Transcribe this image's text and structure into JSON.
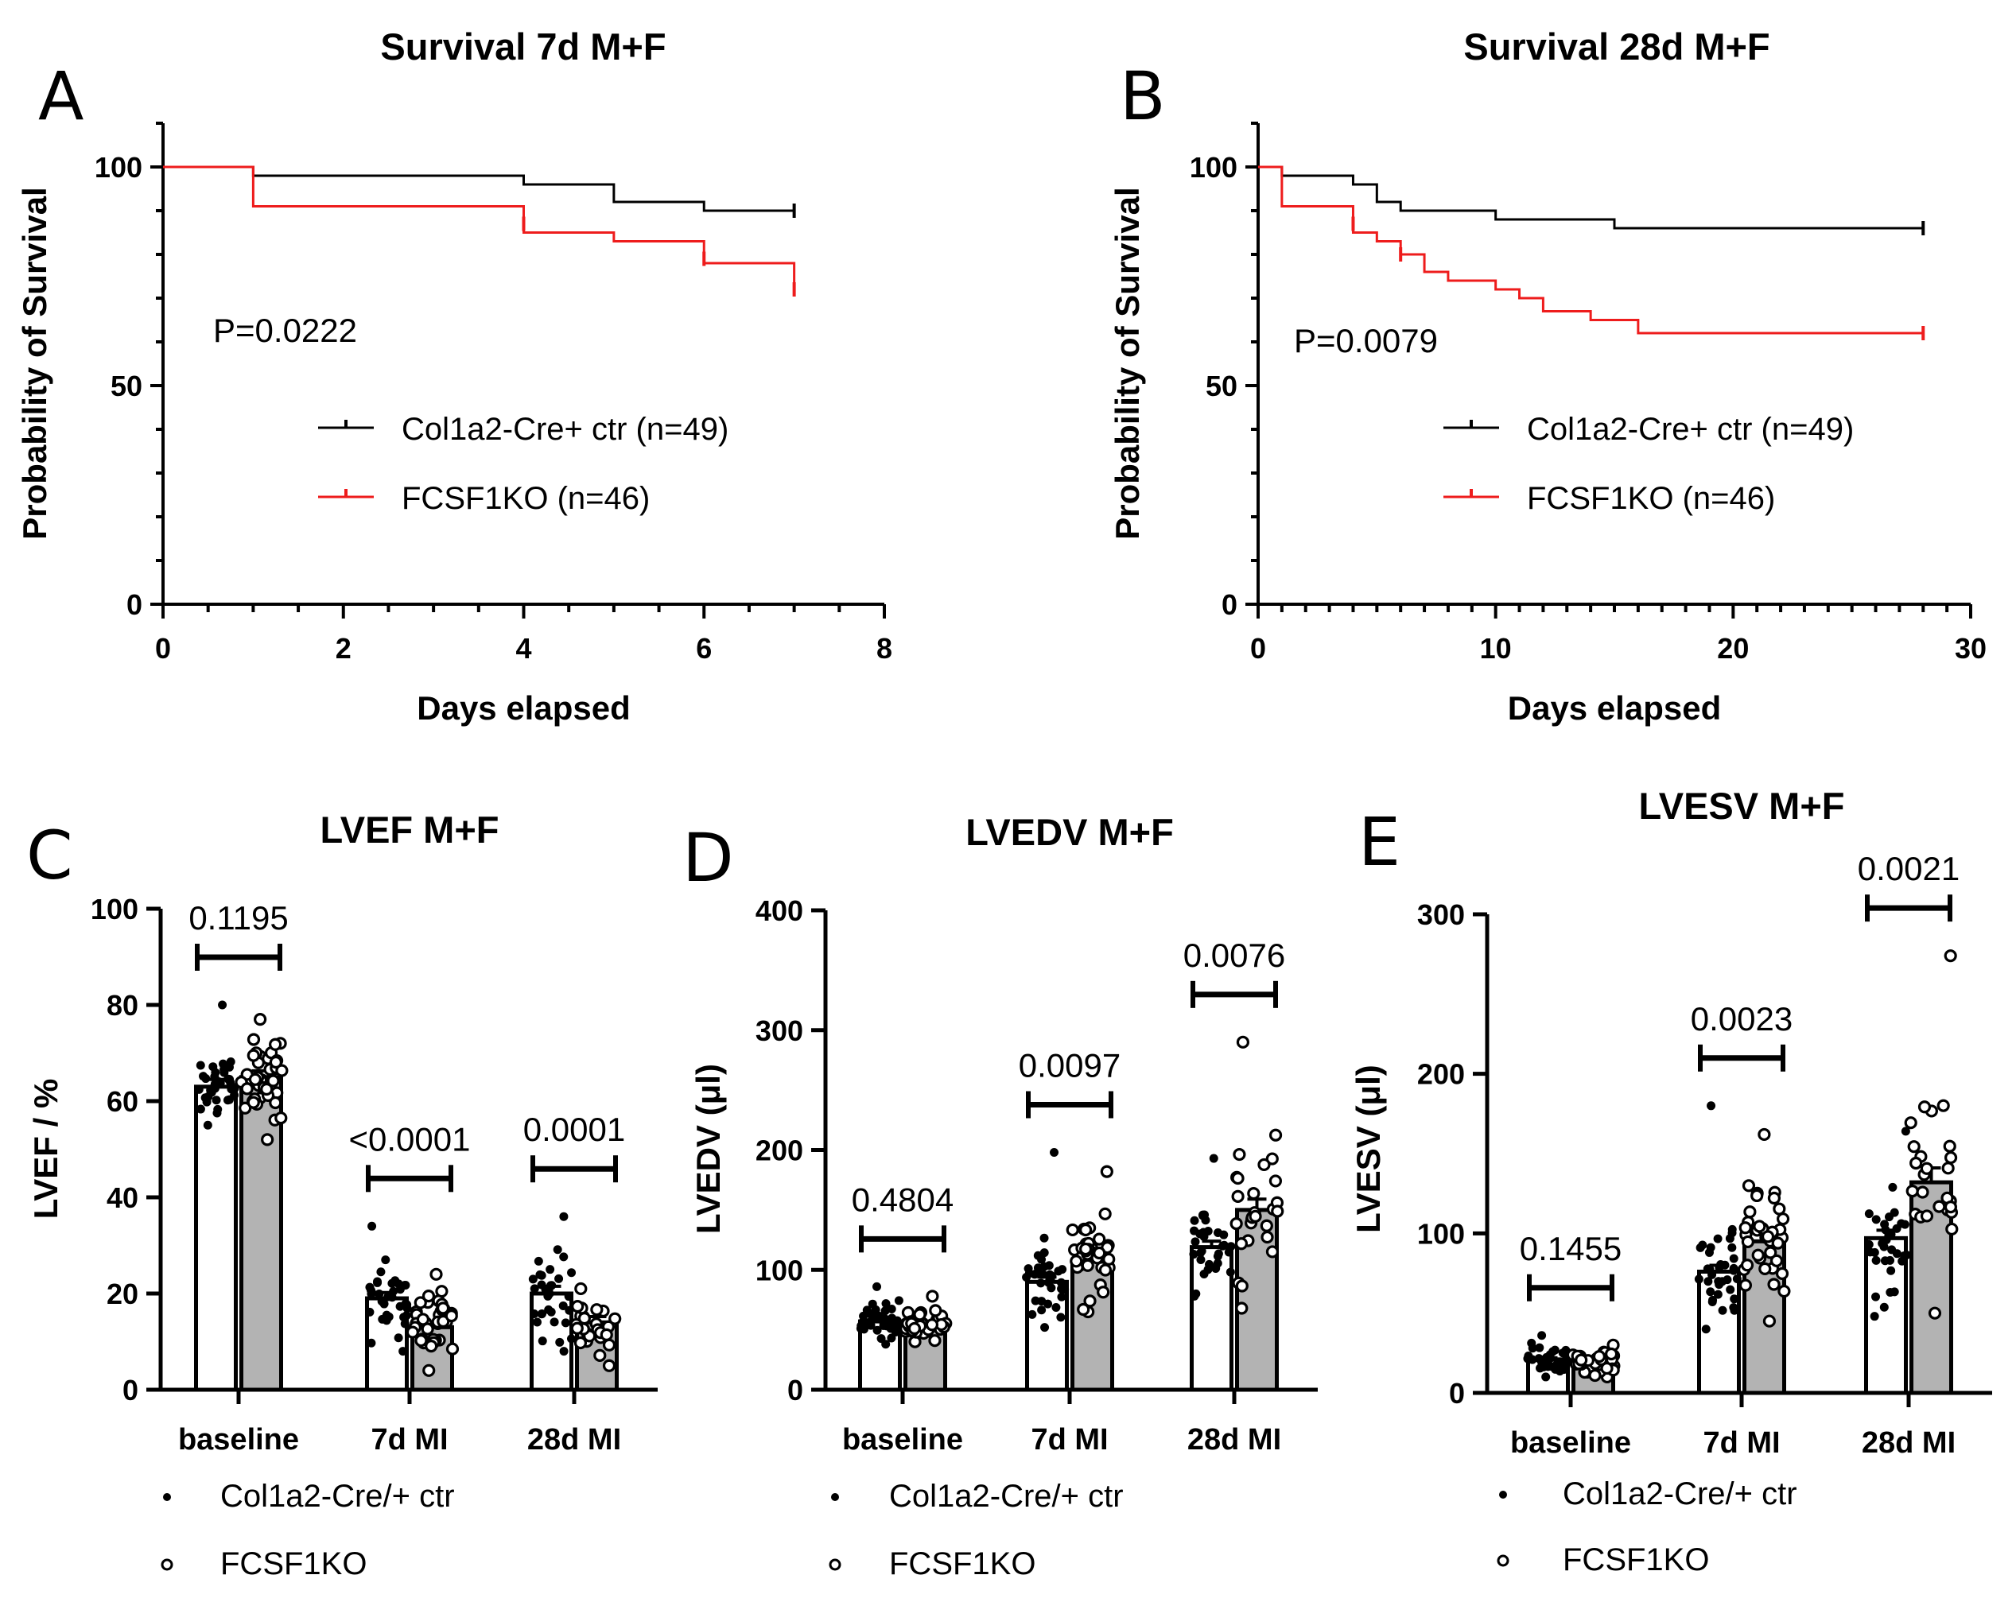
{
  "chart_data": [
    {
      "id": "A",
      "type": "line",
      "panel_label": "A",
      "title": "Survival 7d M+F",
      "xlabel": "Days elapsed",
      "ylabel": "Probability of Survival",
      "xlim": [
        0,
        8
      ],
      "ylim": [
        0,
        110
      ],
      "xticks": [
        0,
        2,
        4,
        6,
        8
      ],
      "yticks": [
        0,
        50,
        100
      ],
      "annotation": "P=0.0222",
      "colors": {
        "ctr": "#000000",
        "ko": "#ee1c1c"
      },
      "series": [
        {
          "name": "Col1a2-Cre+ ctr (n=49)",
          "key": "ctr",
          "x": [
            0,
            1,
            4,
            5,
            6,
            7
          ],
          "y": [
            100,
            98,
            96,
            92,
            90,
            90
          ],
          "censor": [
            [
              7,
              90
            ]
          ]
        },
        {
          "name": "FCSF1KO (n=46)",
          "key": "ko",
          "x": [
            0,
            1,
            4,
            5,
            6,
            7
          ],
          "y": [
            100,
            91,
            85,
            83,
            78,
            72
          ],
          "censor": [
            [
              4,
              87
            ],
            [
              6,
              79
            ],
            [
              7,
              72
            ]
          ]
        }
      ]
    },
    {
      "id": "B",
      "type": "line",
      "panel_label": "B",
      "title": "Survival 28d M+F",
      "xlabel": "Days elapsed",
      "ylabel": "Probability of Survival",
      "xlim": [
        0,
        30
      ],
      "ylim": [
        0,
        110
      ],
      "xticks": [
        0,
        10,
        20,
        30
      ],
      "yticks": [
        0,
        50,
        100
      ],
      "annotation": "P=0.0079",
      "colors": {
        "ctr": "#000000",
        "ko": "#ee1c1c"
      },
      "series": [
        {
          "name": "Col1a2-Cre+ ctr (n=49)",
          "key": "ctr",
          "x": [
            0,
            1,
            4,
            5,
            6,
            10,
            15,
            28
          ],
          "y": [
            100,
            98,
            96,
            92,
            90,
            88,
            86,
            86
          ],
          "censor": [
            [
              28,
              86
            ]
          ]
        },
        {
          "name": "FCSF1KO (n=46)",
          "key": "ko",
          "x": [
            0,
            1,
            4,
            5,
            6,
            7,
            8,
            10,
            11,
            12,
            14,
            16,
            28
          ],
          "y": [
            100,
            91,
            85,
            83,
            80,
            76,
            74,
            72,
            70,
            67,
            65,
            62,
            62
          ],
          "censor": [
            [
              4,
              87
            ],
            [
              6,
              80
            ],
            [
              28,
              62
            ]
          ]
        }
      ]
    },
    {
      "id": "C",
      "type": "bar",
      "panel_label": "C",
      "title": "LVEF M+F",
      "ylabel": "LVEF / %",
      "ylim": [
        0,
        100
      ],
      "yticks": [
        0,
        20,
        40,
        60,
        80,
        100
      ],
      "categories": [
        "baseline",
        "7d MI",
        "28d MI"
      ],
      "series": [
        {
          "name": "Col1a2-Cre/+ ctr",
          "values": [
            63,
            19,
            20
          ],
          "sem": [
            1.5,
            1.2,
            1.5
          ],
          "range": [
            [
              55,
              80
            ],
            [
              8,
              34
            ],
            [
              8,
              36
            ]
          ],
          "n": [
            40,
            36,
            32
          ]
        },
        {
          "name": "FCSF1KO",
          "values": [
            65,
            13,
            14
          ],
          "sem": [
            1.3,
            1.0,
            1.2
          ],
          "range": [
            [
              52,
              77
            ],
            [
              4,
              24
            ],
            [
              5,
              21
            ]
          ],
          "n": [
            40,
            36,
            27
          ]
        }
      ],
      "pvalues": [
        "0.1195",
        "<0.0001",
        "0.0001"
      ],
      "legend": [
        "Col1a2-Cre/+ ctr",
        "FCSF1KO"
      ]
    },
    {
      "id": "D",
      "type": "bar",
      "panel_label": "D",
      "title": "LVEDV M+F",
      "ylabel": "LVEDV (μl)",
      "ylim": [
        0,
        400
      ],
      "yticks": [
        0,
        100,
        200,
        300,
        400
      ],
      "categories": [
        "baseline",
        "7d MI",
        "28d MI"
      ],
      "series": [
        {
          "name": "Col1a2-Cre/+ ctr",
          "values": [
            57,
            90,
            119
          ],
          "sem": [
            2,
            4,
            5
          ],
          "range": [
            [
              38,
              86
            ],
            [
              52,
              198
            ],
            [
              78,
              193
            ]
          ],
          "n": [
            40,
            36,
            32
          ]
        },
        {
          "name": "FCSF1KO",
          "values": [
            54,
            108,
            150
          ],
          "sem": [
            2,
            5,
            9
          ],
          "range": [
            [
              40,
              78
            ],
            [
              65,
              182
            ],
            [
              68,
              290
            ]
          ],
          "n": [
            40,
            36,
            27
          ]
        }
      ],
      "pvalues": [
        "0.4804",
        "0.0097",
        "0.0076"
      ],
      "legend": [
        "Col1a2-Cre/+ ctr",
        "FCSF1KO"
      ]
    },
    {
      "id": "E",
      "type": "bar",
      "panel_label": "E",
      "title": "LVESV M+F",
      "ylabel": "LVESV (μl)",
      "ylim": [
        0,
        300
      ],
      "yticks": [
        0,
        100,
        200,
        300
      ],
      "categories": [
        "baseline",
        "7d MI",
        "28d MI"
      ],
      "series": [
        {
          "name": "Col1a2-Cre/+ ctr",
          "values": [
            21,
            76,
            97
          ],
          "sem": [
            1,
            4,
            5
          ],
          "range": [
            [
              10,
              36
            ],
            [
              40,
              180
            ],
            [
              48,
              164
            ]
          ],
          "n": [
            40,
            36,
            32
          ]
        },
        {
          "name": "FCSF1KO",
          "values": [
            19,
            95,
            132
          ],
          "sem": [
            1,
            5,
            9
          ],
          "range": [
            [
              10,
              30
            ],
            [
              45,
              162
            ],
            [
              50,
              274
            ]
          ],
          "n": [
            40,
            36,
            27
          ]
        }
      ],
      "pvalues": [
        "0.1455",
        "0.0023",
        "0.0021"
      ],
      "legend": [
        "Col1a2-Cre/+ ctr",
        "FCSF1KO"
      ]
    }
  ]
}
